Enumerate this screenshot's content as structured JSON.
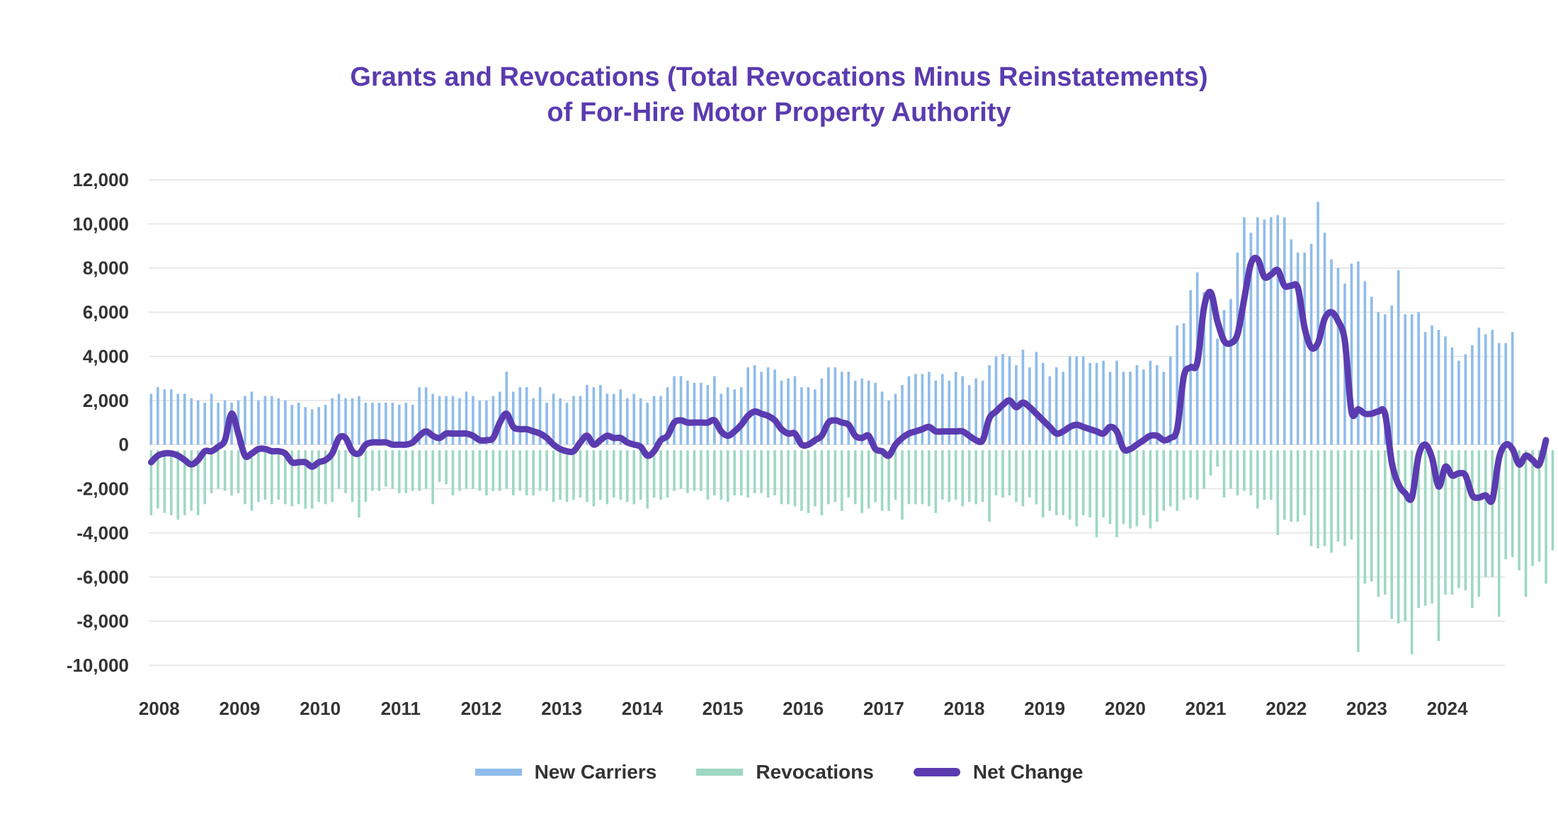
{
  "chart_data": {
    "type": "bar",
    "title": "Grants and Revocations (Total Revocations Minus Reinstatements)",
    "subtitle": "of For-Hire Motor Property Authority",
    "xlabel": "",
    "ylabel": "",
    "ylim": [
      -10000,
      12000
    ],
    "y_ticks": [
      "12,000",
      "10,000",
      "8,000",
      "6,000",
      "4,000",
      "2,000",
      "0",
      "-2,000",
      "-4,000",
      "-6,000",
      "-8,000",
      "-10,000"
    ],
    "y_tick_values": [
      12000,
      10000,
      8000,
      6000,
      4000,
      2000,
      0,
      -2000,
      -4000,
      -6000,
      -8000,
      -10000
    ],
    "x_ticks": [
      "2008",
      "2009",
      "2010",
      "2011",
      "2012",
      "2013",
      "2014",
      "2015",
      "2016",
      "2017",
      "2018",
      "2019",
      "2020",
      "2021",
      "2022",
      "2023",
      "2024"
    ],
    "x_tick_values": [
      2008.1,
      2009.1,
      2010.1,
      2011.1,
      2012.1,
      2013.1,
      2014.1,
      2015.1,
      2016.1,
      2017.1,
      2018.1,
      2019.1,
      2020.1,
      2021.1,
      2022.1,
      2023.1,
      2024.1
    ],
    "grid": true,
    "legend_position": "bottom",
    "colors": {
      "new_carriers": "#8fbcea",
      "revocations": "#9ed8c2",
      "net_change": "#5b3bb0",
      "grid": "#e2e2e2"
    },
    "x_start": 2008.0,
    "x_step": 0.0833,
    "series": [
      {
        "name": "New Carriers",
        "type": "bar",
        "values": [
          2300,
          2600,
          2500,
          2500,
          2300,
          2300,
          2100,
          2000,
          1900,
          2300,
          1900,
          2000,
          1900,
          2000,
          2200,
          2400,
          2000,
          2200,
          2200,
          2100,
          2000,
          1800,
          1900,
          1700,
          1600,
          1700,
          1800,
          2100,
          2300,
          2100,
          2100,
          2200,
          1900,
          1900,
          1900,
          1900,
          1900,
          1800,
          1900,
          1800,
          2600,
          2600,
          2300,
          2200,
          2200,
          2200,
          2100,
          2400,
          2200,
          2000,
          2000,
          2200,
          2400,
          3300,
          2400,
          2600,
          2600,
          2100,
          2600,
          1900,
          2300,
          2100,
          1900,
          2200,
          2200,
          2700,
          2600,
          2700,
          2300,
          2300,
          2500,
          2100,
          2300,
          2100,
          1900,
          2200,
          2200,
          2600,
          3100,
          3100,
          2900,
          2800,
          2800,
          2700,
          3100,
          2300,
          2600,
          2500,
          2600,
          3500,
          3600,
          3300,
          3500,
          3400,
          2900,
          3000,
          3100,
          2600,
          2600,
          2500,
          3000,
          3500,
          3500,
          3300,
          3300,
          2900,
          3000,
          2900,
          2800,
          2400,
          2000,
          2300,
          2700,
          3100,
          3200,
          3200,
          3300,
          2900,
          3200,
          2900,
          3300,
          3100,
          2700,
          3000,
          2900,
          3600,
          4000,
          4100,
          4000,
          3600,
          4300,
          3500,
          4200,
          3700,
          3100,
          3500,
          3300,
          4000,
          4000,
          4000,
          3700,
          3700,
          3800,
          3300,
          3800,
          3300,
          3300,
          3600,
          3400,
          3800,
          3600,
          3300,
          4000,
          5400,
          5500,
          7000,
          7800,
          6900,
          6600,
          4800,
          6100,
          6600,
          8700,
          10300,
          9600,
          10300,
          10200,
          10300,
          10400,
          10300,
          9300,
          8700,
          8700,
          9100,
          11000,
          9600,
          8400,
          8000,
          7300,
          8200,
          8300,
          7400,
          6700,
          6000,
          5900,
          6300,
          7900,
          5900,
          5900,
          6000,
          5100,
          5400,
          5200,
          4900,
          4400,
          3800,
          4100,
          4500,
          5300,
          5000,
          5200,
          4600,
          4600,
          5100
        ]
      },
      {
        "name": "Revocations",
        "type": "bar",
        "values": [
          -3200,
          -2900,
          -3100,
          -3200,
          -3400,
          -3200,
          -3000,
          -3200,
          -2700,
          -2200,
          -2000,
          -2100,
          -2300,
          -2200,
          -2700,
          -3000,
          -2600,
          -2500,
          -2700,
          -2500,
          -2700,
          -2800,
          -2700,
          -2900,
          -2900,
          -2600,
          -2700,
          -2600,
          -2000,
          -2200,
          -2600,
          -3300,
          -2600,
          -2100,
          -2100,
          -1900,
          -2000,
          -2200,
          -2200,
          -2100,
          -2100,
          -2000,
          -2700,
          -1700,
          -1800,
          -2300,
          -2100,
          -2000,
          -2000,
          -2100,
          -2300,
          -2100,
          -2100,
          -2000,
          -2300,
          -2100,
          -2300,
          -2300,
          -2100,
          -2100,
          -2600,
          -2500,
          -2600,
          -2500,
          -2400,
          -2600,
          -2800,
          -2500,
          -2700,
          -2400,
          -2500,
          -2600,
          -2700,
          -2500,
          -2900,
          -2400,
          -2500,
          -2400,
          -2100,
          -2000,
          -2200,
          -2100,
          -2100,
          -2500,
          -2300,
          -2500,
          -2600,
          -2300,
          -2300,
          -2400,
          -2200,
          -2200,
          -2400,
          -2300,
          -2700,
          -2700,
          -2800,
          -3000,
          -3100,
          -2800,
          -3200,
          -2700,
          -2600,
          -3000,
          -2400,
          -2700,
          -3100,
          -2900,
          -2600,
          -3000,
          -3000,
          -2500,
          -3400,
          -2700,
          -2700,
          -2700,
          -2800,
          -3100,
          -2500,
          -2600,
          -2500,
          -2800,
          -2600,
          -2700,
          -2600,
          -3500,
          -2300,
          -2400,
          -2300,
          -2600,
          -2800,
          -2400,
          -2700,
          -3300,
          -3000,
          -3200,
          -3200,
          -3400,
          -3700,
          -3200,
          -3300,
          -4200,
          -3300,
          -3600,
          -4200,
          -3600,
          -3800,
          -3700,
          -3200,
          -3800,
          -3500,
          -3000,
          -2800,
          -3000,
          -2500,
          -2400,
          -2500,
          -2000,
          -1400,
          -1000,
          -2400,
          -2000,
          -2300,
          -2100,
          -2300,
          -2900,
          -2500,
          -2500,
          -4100,
          -3400,
          -3500,
          -3500,
          -3200,
          -4600,
          -4700,
          -4600,
          -4900,
          -4400,
          -4600,
          -4300,
          -9400,
          -6300,
          -6200,
          -6900,
          -6800,
          -7900,
          -8100,
          -8000,
          -9500,
          -7400,
          -7300,
          -7200,
          -8900,
          -6800,
          -6800,
          -6500,
          -6600,
          -7400,
          -6900,
          -6000,
          -6000,
          -7800,
          -5200,
          -5100,
          -5700,
          -6900,
          -5500,
          -5300,
          -6300,
          -4800
        ]
      },
      {
        "name": "Net Change",
        "type": "line",
        "values": [
          -800,
          -500,
          -400,
          -400,
          -500,
          -700,
          -900,
          -700,
          -300,
          -300,
          -100,
          200,
          1400,
          500,
          -500,
          -400,
          -200,
          -200,
          -300,
          -300,
          -400,
          -800,
          -800,
          -800,
          -1000,
          -800,
          -700,
          -400,
          300,
          300,
          -300,
          -400,
          0,
          100,
          100,
          100,
          0,
          0,
          0,
          100,
          400,
          600,
          400,
          300,
          500,
          500,
          500,
          500,
          400,
          200,
          200,
          300,
          1000,
          1400,
          800,
          700,
          700,
          600,
          500,
          300,
          0,
          -200,
          -300,
          -300,
          100,
          400,
          0,
          200,
          400,
          300,
          300,
          100,
          0,
          -100,
          -500,
          -300,
          200,
          400,
          1000,
          1100,
          1000,
          1000,
          1000,
          1000,
          1100,
          600,
          400,
          600,
          900,
          1300,
          1500,
          1400,
          1300,
          1100,
          700,
          500,
          500,
          0,
          0,
          200,
          400,
          1000,
          1100,
          1000,
          900,
          400,
          300,
          400,
          -200,
          -300,
          -500,
          0,
          300,
          500,
          600,
          700,
          800,
          600,
          600,
          600,
          600,
          600,
          400,
          200,
          200,
          1200,
          1500,
          1800,
          2000,
          1700,
          1900,
          1700,
          1400,
          1100,
          800,
          500,
          600,
          800,
          900,
          800,
          700,
          600,
          500,
          800,
          600,
          -200,
          -200,
          0,
          200,
          400,
          400,
          200,
          300,
          700,
          3100,
          3500,
          3700,
          6200,
          6900,
          5600,
          4700,
          4600,
          5000,
          6600,
          8200,
          8400,
          7600,
          7700,
          7900,
          7200,
          7200,
          7100,
          5300,
          4400,
          4600,
          5700,
          6000,
          5600,
          4700,
          1500,
          1600,
          1400,
          1400,
          1500,
          1400,
          -800,
          -1800,
          -2200,
          -2400,
          -500,
          0,
          -600,
          -1900,
          -1000,
          -1400,
          -1300,
          -1400,
          -2300,
          -2400,
          -2300,
          -2500,
          -600,
          0,
          -200,
          -900,
          -500,
          -700,
          -900,
          200
        ]
      }
    ],
    "legend": [
      "New Carriers",
      "Revocations",
      "Net Change"
    ]
  }
}
